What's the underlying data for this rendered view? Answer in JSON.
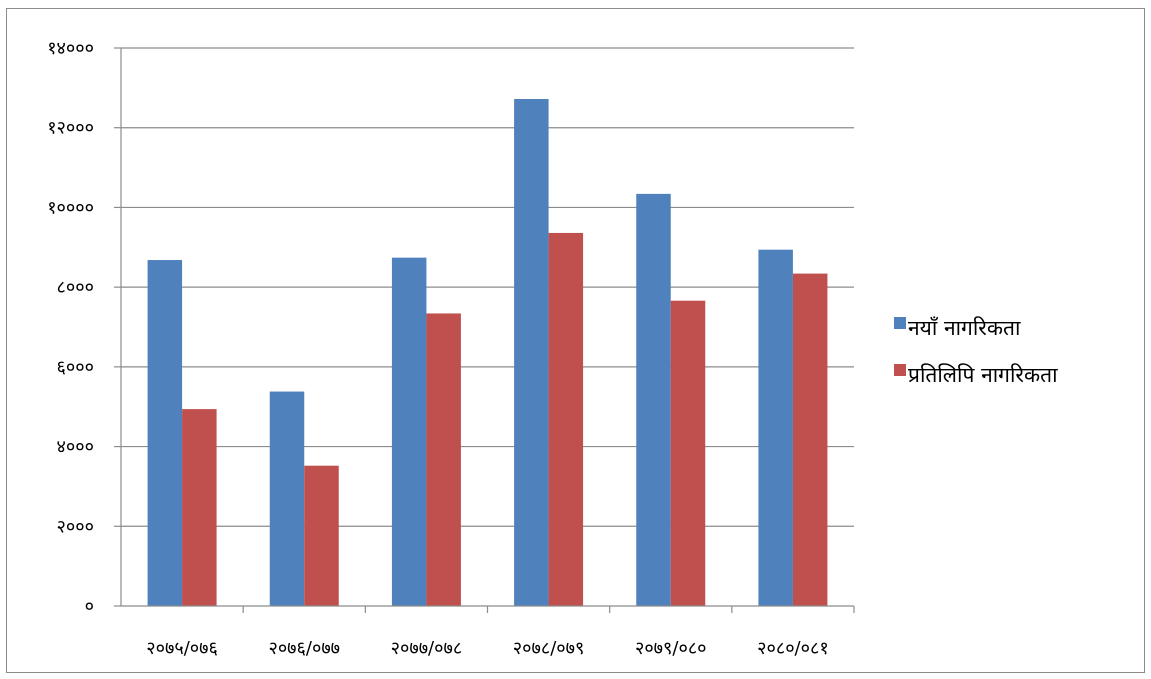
{
  "chart_data": {
    "type": "bar",
    "categories": [
      "२०७५/०७६",
      "२०७६/०७७",
      "२०७७/०७८",
      "२०७८/०७९",
      "२०७९/०८०",
      "२०८०/०८१"
    ],
    "series": [
      {
        "name": "नयाँ नागरिकता",
        "color": "#4f81bd",
        "values": [
          8680,
          5380,
          8740,
          12720,
          10340,
          8940
        ]
      },
      {
        "name": "प्रतिलिपि नागरिकता",
        "color": "#c0504d",
        "values": [
          4940,
          3520,
          7340,
          9360,
          7660,
          8340
        ]
      }
    ],
    "yticks": [
      "०",
      "२०००",
      "४०००",
      "६०००",
      "८०००",
      "१००००",
      "१२०००",
      "१४०००"
    ],
    "ylim": [
      0,
      14000
    ],
    "grid": true,
    "legend_position": "right"
  }
}
